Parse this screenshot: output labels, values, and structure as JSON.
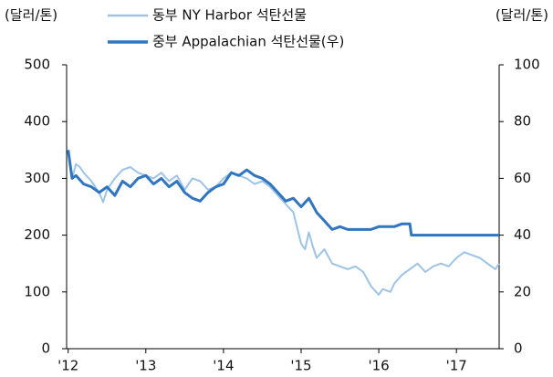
{
  "chart_data": {
    "type": "line",
    "y_label": "(달러/톤)",
    "y2_label": "(달러/톤)",
    "xlim": [
      2011.98,
      2017.55
    ],
    "xticks": [
      {
        "value": 2012,
        "label": "'12"
      },
      {
        "value": 2013,
        "label": "'13"
      },
      {
        "value": 2014,
        "label": "'14"
      },
      {
        "value": 2015,
        "label": "'15"
      },
      {
        "value": 2016,
        "label": "'16"
      },
      {
        "value": 2017,
        "label": "'17"
      }
    ],
    "ylim": [
      0,
      500
    ],
    "yticks": [
      0,
      100,
      200,
      300,
      400,
      500
    ],
    "y2lim": [
      0,
      100
    ],
    "y2ticks": [
      0,
      20,
      40,
      60,
      80,
      100
    ],
    "series": [
      {
        "name": "동부 NY Harbor 석탄선물",
        "color": "#9dc3e6",
        "axis": "y",
        "x": [
          2012.0,
          2012.05,
          2012.1,
          2012.15,
          2012.2,
          2012.3,
          2012.4,
          2012.45,
          2012.5,
          2012.6,
          2012.7,
          2012.8,
          2012.9,
          2013.0,
          2013.1,
          2013.2,
          2013.3,
          2013.4,
          2013.5,
          2013.6,
          2013.7,
          2013.8,
          2013.9,
          2014.0,
          2014.1,
          2014.2,
          2014.3,
          2014.4,
          2014.5,
          2014.6,
          2014.7,
          2014.8,
          2014.9,
          2015.0,
          2015.05,
          2015.1,
          2015.15,
          2015.2,
          2015.3,
          2015.4,
          2015.5,
          2015.6,
          2015.7,
          2015.8,
          2015.9,
          2016.0,
          2016.05,
          2016.15,
          2016.2,
          2016.3,
          2016.4,
          2016.5,
          2016.6,
          2016.7,
          2016.8,
          2016.9,
          2017.0,
          2017.1,
          2017.2,
          2017.3,
          2017.4,
          2017.5,
          2017.55
        ],
        "values": [
          345,
          300,
          325,
          320,
          310,
          295,
          275,
          258,
          280,
          300,
          315,
          320,
          310,
          305,
          300,
          310,
          295,
          305,
          280,
          300,
          295,
          280,
          285,
          300,
          310,
          305,
          300,
          290,
          295,
          285,
          270,
          255,
          240,
          185,
          175,
          205,
          180,
          160,
          175,
          150,
          145,
          140,
          145,
          135,
          110,
          95,
          105,
          100,
          115,
          130,
          140,
          150,
          135,
          145,
          150,
          145,
          160,
          170,
          165,
          160,
          150,
          140,
          150
        ]
      },
      {
        "name": "중부 Appalachian 석탄선물(우)",
        "color": "#2f75c0",
        "axis": "y2",
        "x": [
          2012.0,
          2012.05,
          2012.1,
          2012.2,
          2012.3,
          2012.4,
          2012.5,
          2012.6,
          2012.7,
          2012.8,
          2012.9,
          2013.0,
          2013.1,
          2013.2,
          2013.3,
          2013.4,
          2013.5,
          2013.6,
          2013.7,
          2013.8,
          2013.9,
          2014.0,
          2014.1,
          2014.2,
          2014.3,
          2014.4,
          2014.5,
          2014.6,
          2014.7,
          2014.8,
          2014.9,
          2015.0,
          2015.1,
          2015.2,
          2015.3,
          2015.4,
          2015.5,
          2015.6,
          2015.7,
          2015.8,
          2015.9,
          2016.0,
          2016.2,
          2016.3,
          2016.4,
          2016.42,
          2016.6,
          2016.65,
          2017.0,
          2017.55
        ],
        "values": [
          70,
          60,
          61,
          58,
          57,
          55,
          57,
          54,
          59,
          57,
          60,
          61,
          58,
          60,
          57,
          59,
          55,
          53,
          52,
          55,
          57,
          58,
          62,
          61,
          63,
          61,
          60,
          58,
          55,
          52,
          53,
          50,
          53,
          48,
          45,
          42,
          43,
          42,
          42,
          42,
          42,
          43,
          43,
          44,
          44,
          40,
          40,
          40,
          40,
          40
        ]
      }
    ]
  }
}
